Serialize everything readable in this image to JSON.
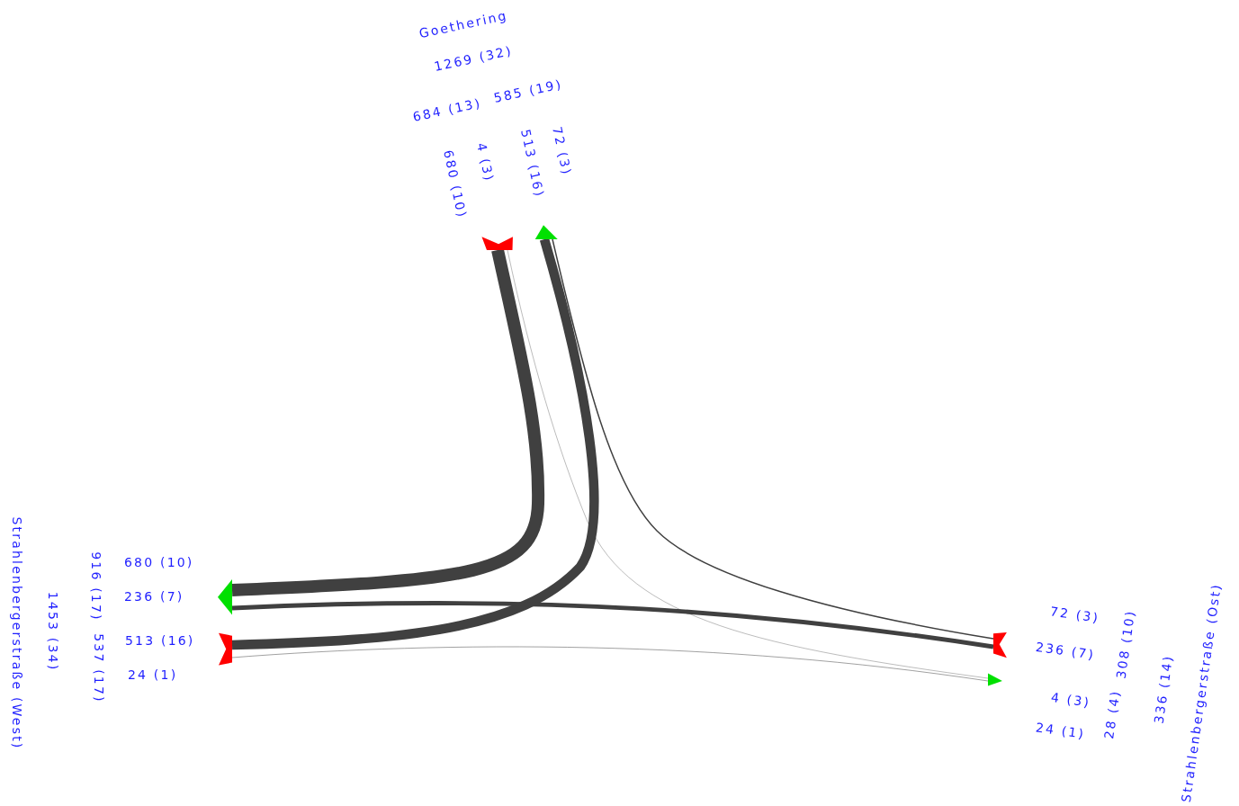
{
  "chart_data": {
    "type": "other",
    "categories": [
      "Goethering",
      "Strahlenbergerstraße (West)",
      "Strahlenbergerstraße (Ost)"
    ],
    "series": [
      {
        "color": "#404040",
        "values": [
          null,
          680,
          4
        ],
        "value_labels": [
          null,
          "680 (10)",
          "4 (3)"
        ]
      },
      {
        "color": "#404040",
        "values": [
          513,
          null,
          24
        ],
        "value_labels": [
          "513 (16)",
          null,
          "24 (1)"
        ]
      },
      {
        "color": "#404040",
        "values": [
          72,
          236,
          null
        ],
        "value_labels": [
          "72 (3)",
          "236 (7)",
          null
        ]
      }
    ],
    "annotations": [
      "684 (13)",
      "585 (19)",
      "1269 (32)",
      "537 (17)",
      "916 (17)",
      "1453 (34)",
      "308 (10)",
      "28 (4)",
      "336 (14)"
    ]
  }
}
